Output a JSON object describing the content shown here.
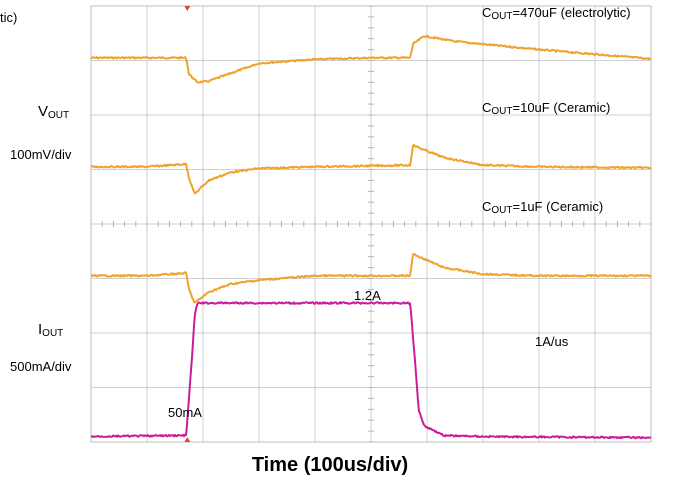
{
  "chart_data": {
    "type": "line",
    "xlabel": "Time (100us/div)",
    "grid": true,
    "x_divisions": 10,
    "y_divisions": 8,
    "series": [
      {
        "name": "COUT=470uF (electrolytic)",
        "group": "VOUT",
        "color": "#f0a22e",
        "x": [
          0,
          1,
          1.7,
          1.75,
          1.9,
          2.1,
          3,
          4,
          5,
          5.7,
          5.75,
          5.95,
          6.5,
          8,
          10
        ],
        "y": [
          7.05,
          7.05,
          7.05,
          6.75,
          6.6,
          6.62,
          6.95,
          7.02,
          7.05,
          7.05,
          7.3,
          7.45,
          7.35,
          7.2,
          7.03
        ]
      },
      {
        "name": "COUT=10uF (Ceramic)",
        "group": "VOUT",
        "color": "#f0a22e",
        "x": [
          0,
          1,
          1.7,
          1.75,
          1.85,
          2.1,
          2.5,
          3,
          4,
          5.7,
          5.75,
          5.9,
          6.3,
          7,
          8,
          10
        ],
        "y": [
          5.05,
          5.05,
          5.1,
          4.85,
          4.55,
          4.8,
          4.95,
          5.02,
          5.05,
          5.08,
          5.45,
          5.38,
          5.22,
          5.08,
          5.05,
          5.03
        ]
      },
      {
        "name": "COUT=1uF (Ceramic)",
        "group": "VOUT",
        "color": "#f0a22e",
        "x": [
          0,
          1,
          1.7,
          1.75,
          1.85,
          2.1,
          2.5,
          3,
          4,
          5.7,
          5.75,
          5.9,
          6.3,
          7,
          8,
          10
        ],
        "y": [
          3.05,
          3.05,
          3.1,
          2.8,
          2.55,
          2.75,
          2.9,
          2.97,
          3.05,
          3.05,
          3.45,
          3.38,
          3.2,
          3.08,
          3.05,
          3.05
        ]
      },
      {
        "name": "IOUT",
        "group": "IOUT",
        "color": "#c81c9a",
        "x": [
          0,
          1.7,
          1.8,
          1.85,
          1.9,
          5.7,
          5.8,
          5.85,
          5.95,
          6.3,
          7,
          10
        ],
        "y": [
          0.1,
          0.12,
          1.5,
          2.3,
          2.55,
          2.55,
          1.3,
          0.6,
          0.3,
          0.12,
          0.1,
          0.08
        ]
      }
    ],
    "annotations": {
      "vout_axis": [
        "V",
        "OUT"
      ],
      "vout_scale": "100mV/div",
      "iout_axis": [
        "I",
        "OUT"
      ],
      "iout_scale": "500mA/div",
      "label_470": [
        "C",
        "OUT",
        "=470uF (electrolytic)"
      ],
      "label_10": [
        "C",
        "OUT",
        "=10uF (Ceramic)"
      ],
      "label_1": [
        "C",
        "OUT",
        "=1uF (Ceramic)"
      ],
      "high_current": "1.2A",
      "low_current": "50mA",
      "slew_rate": "1A/us",
      "left_cut": "tic)"
    }
  }
}
